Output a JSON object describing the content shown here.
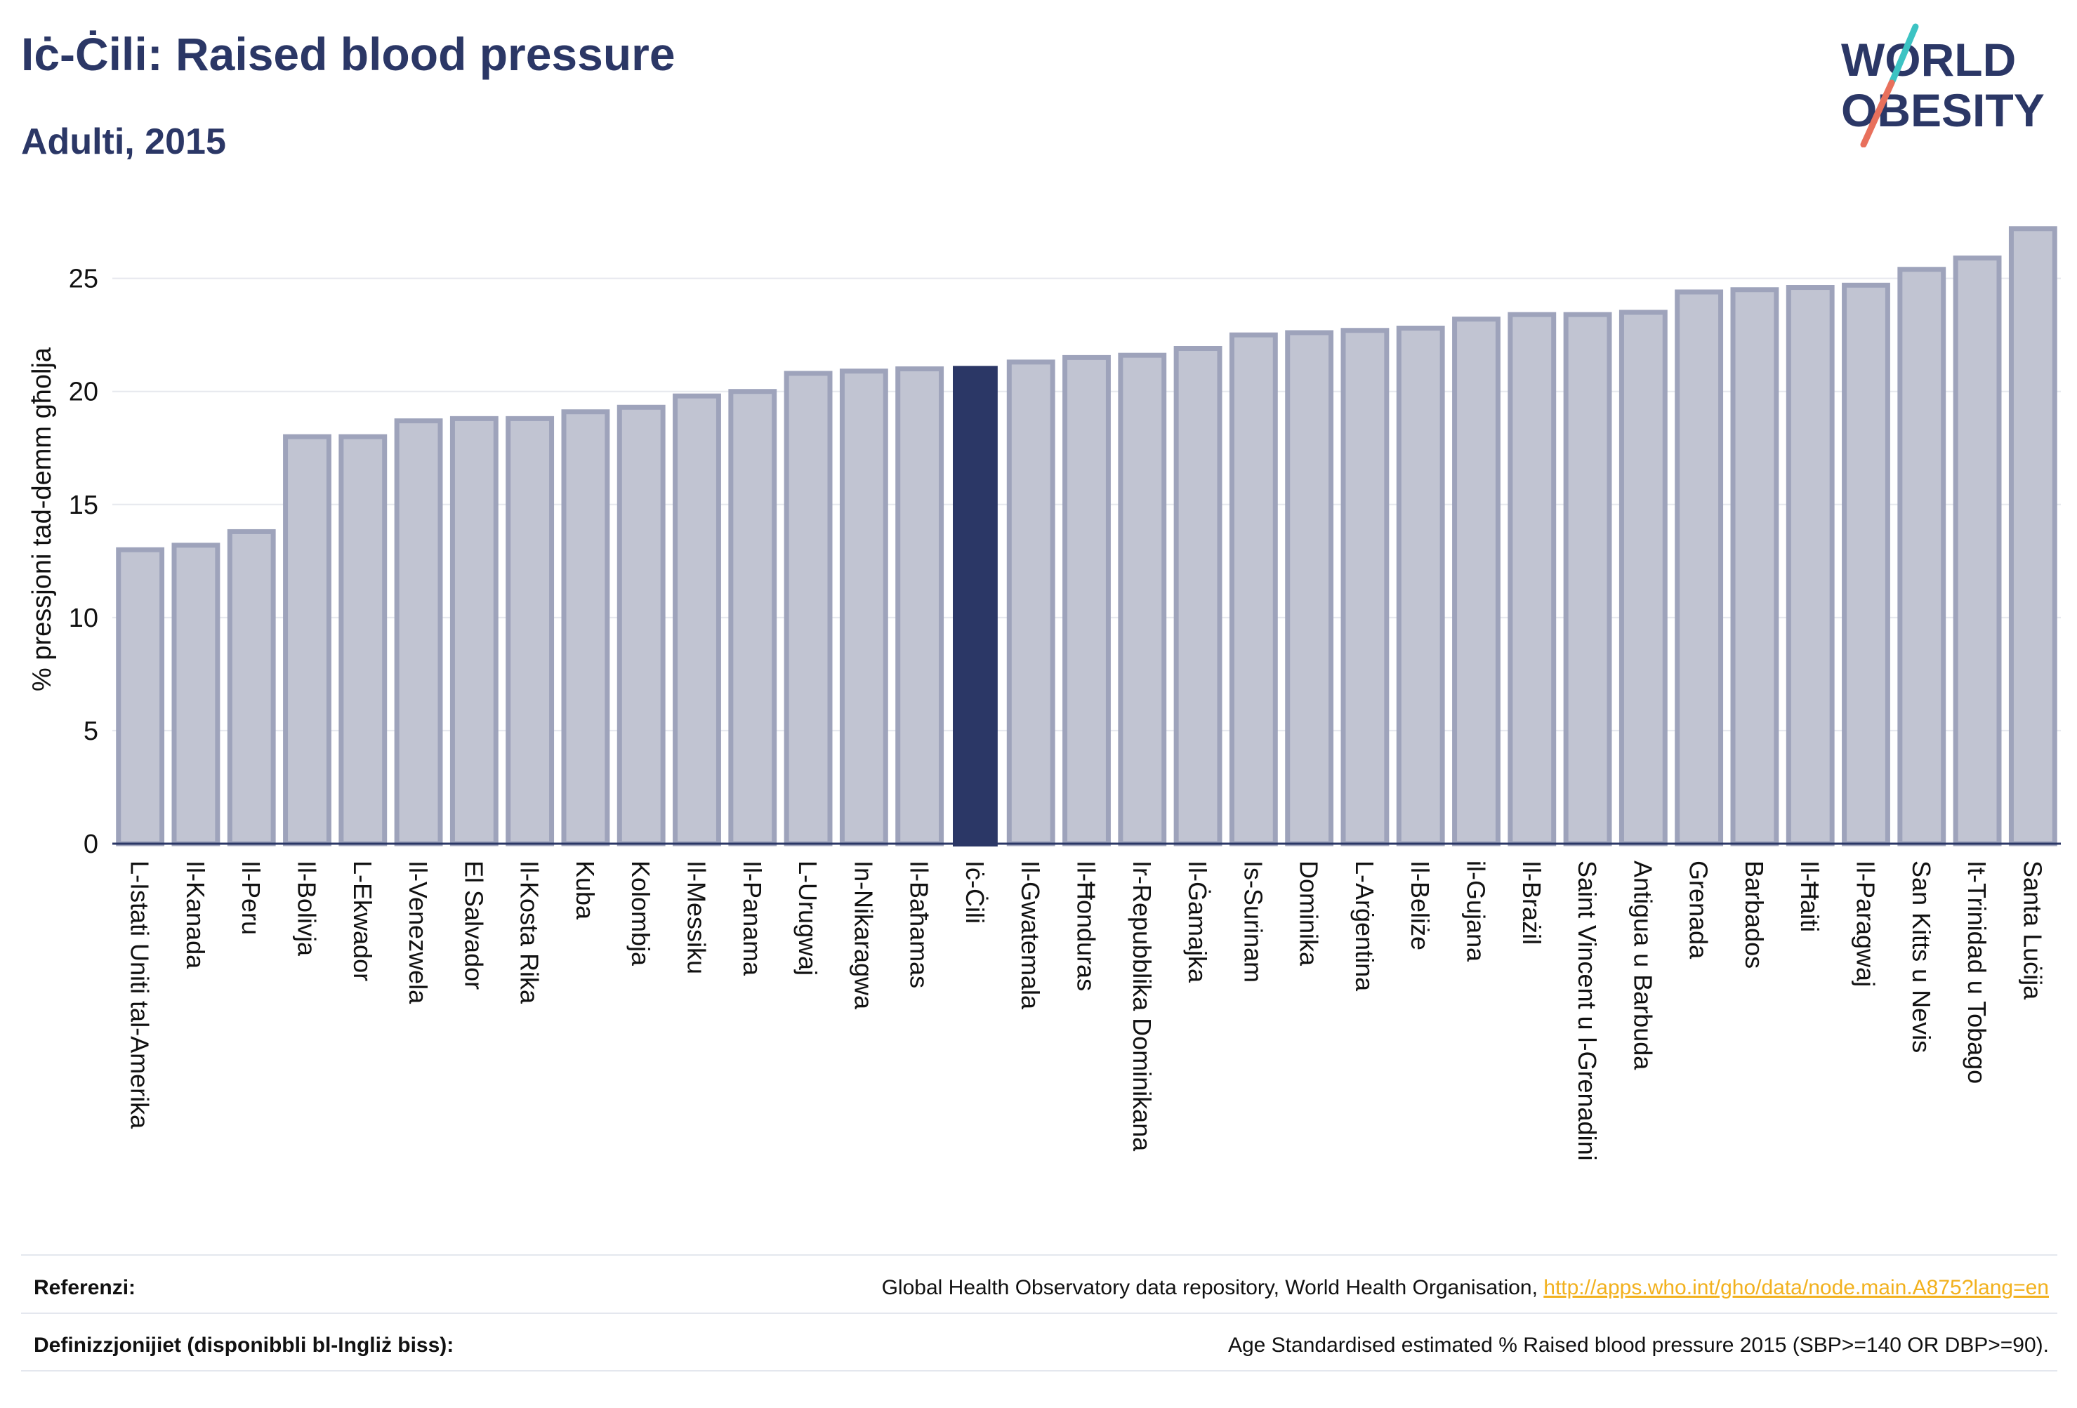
{
  "header": {
    "title": "Iċ-Ċili: Raised blood pressure",
    "subtitle": "Adulti, 2015"
  },
  "logo": {
    "line1": "WORLD",
    "line2": "OBESITY",
    "slash_colors": [
      "#3cc3c3",
      "#e8705c"
    ],
    "text_color": "#2b3766"
  },
  "chart_data": {
    "type": "bar",
    "ylabel": "% pressjoni tad-demm għolja",
    "ylim": [
      0,
      28
    ],
    "yticks": [
      0,
      5,
      10,
      15,
      20,
      25
    ],
    "grid": true,
    "highlight": "Iċ-Ċili",
    "colors": {
      "bar": "#c1c4d2",
      "bar_border": "#9ea3bb",
      "highlight": "#2b3766"
    },
    "categories": [
      "L-Istati Uniti tal-Amerika",
      "Il-Kanada",
      "Il-Peru",
      "Il-Bolivja",
      "L-Ekwador",
      "Il-Venezwela",
      "El Salvador",
      "Il-Kosta Rika",
      "Kuba",
      "Kolombja",
      "Il-Messiku",
      "Il-Panama",
      "L-Urugwaj",
      "In-Nikaragwa",
      "Il-Baħamas",
      "Iċ-Ċili",
      "Il-Gwatemala",
      "Il-Ħonduras",
      "Ir-Repubblika Dominikana",
      "Il-Ġamajka",
      "Is-Surinam",
      "Dominika",
      "L-Arġentina",
      "Il-Beliże",
      "il-Gujana",
      "Il-Brażil",
      "Saint Vincent u l-Grenadini",
      "Antigua u Barbuda",
      "Grenada",
      "Barbados",
      "Il-Ħaiti",
      "Il-Paragwaj",
      "San Kitts u Nevis",
      "It-Trinidad u Tobago",
      "Santa Luċija"
    ],
    "values": [
      13.0,
      13.2,
      13.8,
      18.0,
      18.0,
      18.7,
      18.8,
      18.8,
      19.1,
      19.3,
      19.8,
      20.0,
      20.8,
      20.9,
      21.0,
      21.1,
      21.3,
      21.5,
      21.6,
      21.9,
      22.5,
      22.6,
      22.7,
      22.8,
      23.2,
      23.4,
      23.4,
      23.5,
      24.4,
      24.5,
      24.6,
      24.7,
      25.4,
      25.9,
      27.2
    ]
  },
  "footer": {
    "references_label": "Referenzi:",
    "references_text": "Global Health Observatory data repository, World Health Organisation, ",
    "references_link": "http://apps.who.int/gho/data/node.main.A875?lang=en",
    "definitions_label": "Definizzjonijiet (disponibbli bl-Ingliż biss):",
    "definitions_text": "Age Standardised estimated % Raised blood pressure 2015 (SBP>=140 OR DBP>=90)."
  }
}
